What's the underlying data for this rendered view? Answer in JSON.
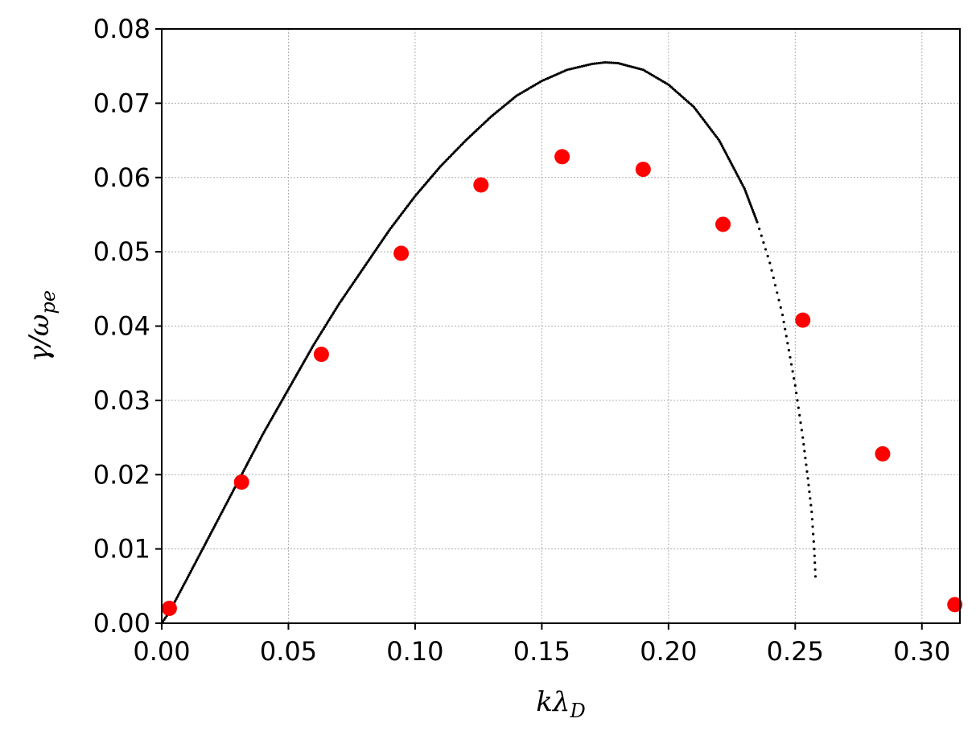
{
  "chart_data": {
    "type": "scatter",
    "xlabel": {
      "main": "kλ",
      "sub": "D"
    },
    "ylabel": {
      "main": "γ/ω",
      "sub": "pe"
    },
    "xlim": [
      0,
      0.315
    ],
    "ylim": [
      0,
      0.08
    ],
    "xticks": [
      0.0,
      0.05,
      0.1,
      0.15,
      0.2,
      0.25,
      0.3
    ],
    "xtick_labels": [
      "0.00",
      "0.05",
      "0.10",
      "0.15",
      "0.20",
      "0.25",
      "0.30"
    ],
    "yticks": [
      0.0,
      0.01,
      0.02,
      0.03,
      0.04,
      0.05,
      0.06,
      0.07,
      0.08
    ],
    "ytick_labels": [
      "0.00",
      "0.01",
      "0.02",
      "0.03",
      "0.04",
      "0.05",
      "0.06",
      "0.07",
      "0.08"
    ],
    "grid": true,
    "legend": "none",
    "series": [
      {
        "kind": "curve",
        "color": "#000000",
        "marker": "small-dot",
        "x": [
          0.0,
          0.003,
          0.01,
          0.02,
          0.03,
          0.04,
          0.05,
          0.06,
          0.07,
          0.08,
          0.09,
          0.1,
          0.11,
          0.12,
          0.13,
          0.14,
          0.15,
          0.16,
          0.17,
          0.175,
          0.18,
          0.19,
          0.2,
          0.21,
          0.22,
          0.23,
          0.235,
          0.24,
          0.245,
          0.25,
          0.253,
          0.255,
          0.2565,
          0.2575,
          0.258
        ],
        "y": [
          0.0,
          0.0015,
          0.006,
          0.0125,
          0.019,
          0.0255,
          0.0315,
          0.0375,
          0.043,
          0.048,
          0.053,
          0.0575,
          0.0615,
          0.065,
          0.0682,
          0.071,
          0.073,
          0.0745,
          0.0753,
          0.0755,
          0.0754,
          0.0745,
          0.0725,
          0.0695,
          0.065,
          0.0585,
          0.054,
          0.0485,
          0.0415,
          0.032,
          0.025,
          0.0195,
          0.015,
          0.01,
          0.0063
        ]
      },
      {
        "kind": "points",
        "color": "#ff0000",
        "marker": "circle",
        "x": [
          0.003,
          0.0315,
          0.063,
          0.0945,
          0.126,
          0.158,
          0.19,
          0.2215,
          0.253,
          0.2845,
          0.313
        ],
        "y": [
          0.002,
          0.019,
          0.0362,
          0.0498,
          0.059,
          0.0628,
          0.0611,
          0.0537,
          0.0408,
          0.0228,
          0.0025
        ]
      }
    ]
  }
}
